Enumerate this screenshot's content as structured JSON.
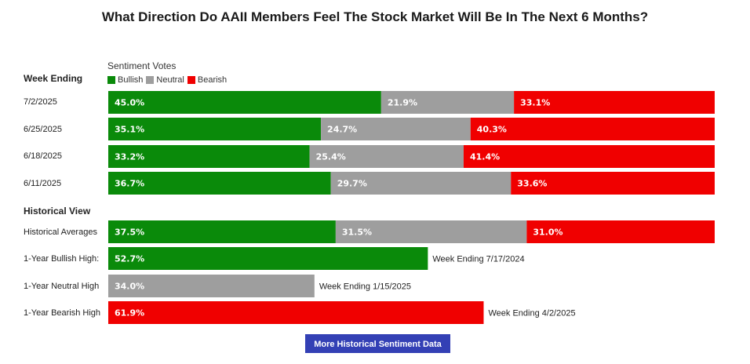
{
  "chart_data": {
    "type": "bar",
    "title": "What Direction Do AAII Members Feel The Stock Market Will Be In The Next 6 Months?",
    "legend_title": "Sentiment Votes",
    "row_header": "Week Ending",
    "historical_header": "Historical View",
    "legend": [
      {
        "name": "Bullish",
        "color": "#0a8a0a"
      },
      {
        "name": "Neutral",
        "color": "#9e9e9e"
      },
      {
        "name": "Bearish",
        "color": "#f00000"
      }
    ],
    "weekly": [
      {
        "label": "7/2/2025",
        "bullish": 45.0,
        "neutral": 21.9,
        "bearish": 33.1,
        "bullish_text": "45.0%",
        "neutral_text": "21.9%",
        "bearish_text": "33.1%"
      },
      {
        "label": "6/25/2025",
        "bullish": 35.1,
        "neutral": 24.7,
        "bearish": 40.3,
        "bullish_text": "35.1%",
        "neutral_text": "24.7%",
        "bearish_text": "40.3%"
      },
      {
        "label": "6/18/2025",
        "bullish": 33.2,
        "neutral": 25.4,
        "bearish": 41.4,
        "bullish_text": "33.2%",
        "neutral_text": "25.4%",
        "bearish_text": "41.4%"
      },
      {
        "label": "6/11/2025",
        "bullish": 36.7,
        "neutral": 29.7,
        "bearish": 33.6,
        "bullish_text": "36.7%",
        "neutral_text": "29.7%",
        "bearish_text": "33.6%"
      }
    ],
    "historical_average": {
      "label": "Historical Averages",
      "bullish": 37.5,
      "neutral": 31.5,
      "bearish": 31.0,
      "bullish_text": "37.5%",
      "neutral_text": "31.5%",
      "bearish_text": "31.0%"
    },
    "highs": [
      {
        "label": "1-Year Bullish High:",
        "sentiment": "bullish",
        "value": 52.7,
        "text": "52.7%",
        "note": "Week Ending 7/17/2024"
      },
      {
        "label": "1-Year Neutral High",
        "sentiment": "neutral",
        "value": 34.0,
        "text": "34.0%",
        "note": "Week Ending 1/15/2025"
      },
      {
        "label": "1-Year Bearish High",
        "sentiment": "bearish",
        "value": 61.9,
        "text": "61.9%",
        "note": "Week Ending 4/2/2025"
      }
    ],
    "xlim": [
      0,
      100
    ]
  },
  "button": {
    "label": "More Historical Sentiment Data"
  }
}
